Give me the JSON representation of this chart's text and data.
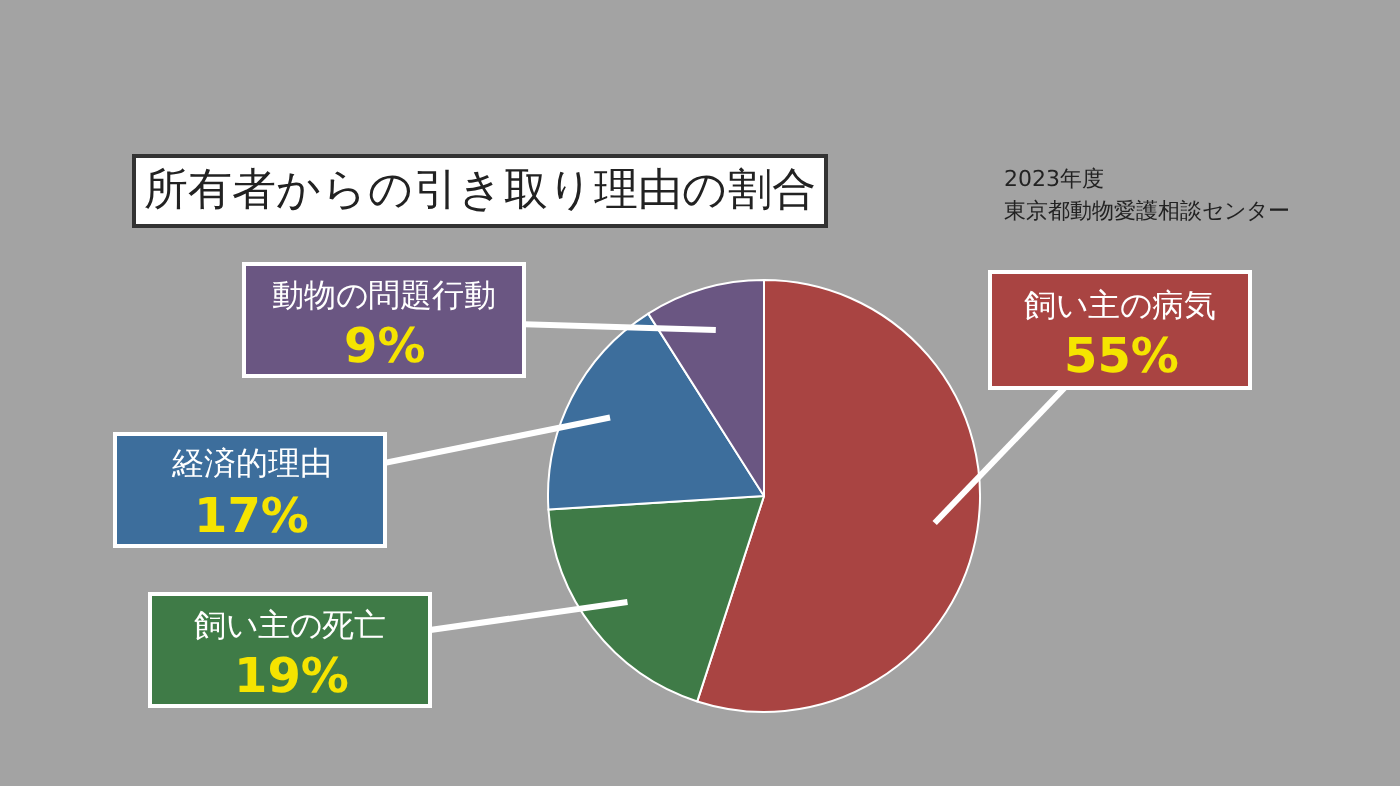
{
  "chart_data": {
    "type": "pie",
    "title": "所有者からの引き取り理由の割合",
    "subtitle": "2023年度",
    "annotations": [
      "東京都動物愛護相談センター"
    ],
    "categories": [
      "飼い主の病気",
      "飼い主の死亡",
      "経済的理由",
      "動物の問題行動"
    ],
    "values": [
      55,
      19,
      17,
      9
    ],
    "value_labels": [
      "55%",
      "19%",
      "17%",
      "9%"
    ],
    "colors": [
      "#a94442",
      "#3f7b47",
      "#3d6e9c",
      "#6a5682"
    ],
    "legend": false
  }
}
